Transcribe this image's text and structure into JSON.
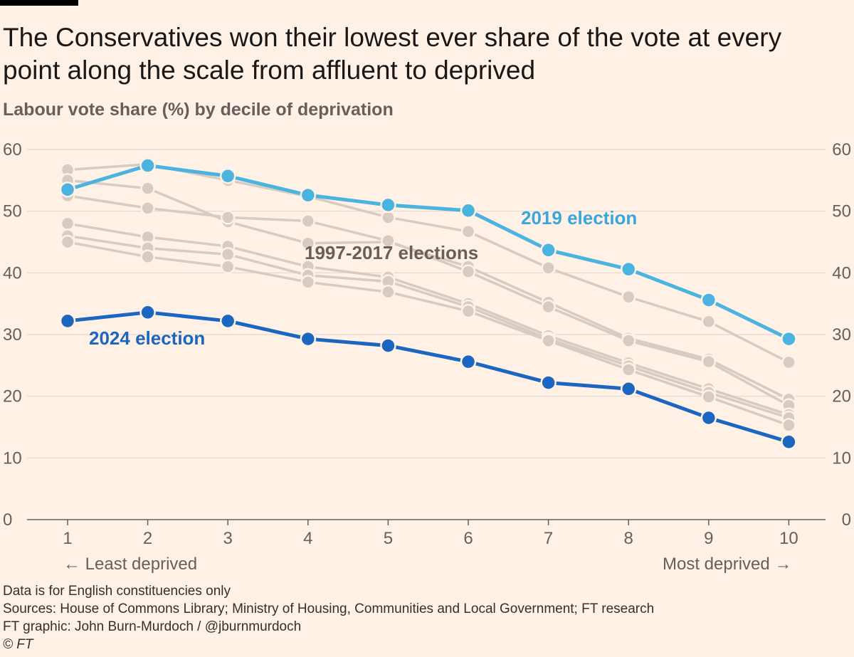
{
  "title": "The Conservatives won their lowest ever share of the vote at every point along the scale from affluent to deprived",
  "subtitle": "Labour vote share (%) by decile of deprivation",
  "chart_data": {
    "type": "line",
    "title": "The Conservatives won their lowest ever share of the vote at every point along the scale from affluent to deprived",
    "ylabel": "Labour vote share (%)",
    "xlabel": "Decile of deprivation",
    "x": [
      1,
      2,
      3,
      4,
      5,
      6,
      7,
      8,
      9,
      10
    ],
    "x_tick_labels": [
      "1",
      "2",
      "3",
      "4",
      "5",
      "6",
      "7",
      "8",
      "9",
      "10"
    ],
    "y_ticks": [
      0,
      10,
      20,
      30,
      40,
      50,
      60
    ],
    "y_tick_labels": [
      "0",
      "10",
      "20",
      "30",
      "40",
      "50",
      "60"
    ],
    "ylim": [
      0,
      60
    ],
    "x_end_labels": {
      "left": "← Least deprived",
      "right": "Most deprived →"
    },
    "grid": true,
    "series": [
      {
        "name": "1997-2017 elections",
        "group": "historic",
        "values": [
          56.7,
          57.6,
          55.0,
          52.4,
          49.0,
          46.7,
          40.8,
          36.1,
          32.1,
          25.5
        ]
      },
      {
        "name": "1997-2017 elections",
        "group": "historic",
        "values": [
          55.0,
          53.7,
          48.3,
          44.8,
          45.0,
          41.0,
          35.2,
          29.4,
          26.0,
          19.5
        ]
      },
      {
        "name": "1997-2017 elections",
        "group": "historic",
        "values": [
          52.5,
          50.5,
          49.0,
          48.4,
          45.2,
          40.2,
          34.5,
          29.0,
          25.6,
          18.5
        ]
      },
      {
        "name": "1997-2017 elections",
        "group": "historic",
        "values": [
          48.0,
          45.8,
          44.3,
          41.0,
          39.3,
          35.0,
          29.8,
          25.4,
          21.2,
          17.0
        ]
      },
      {
        "name": "1997-2017 elections",
        "group": "historic",
        "values": [
          46.0,
          44.0,
          43.0,
          39.6,
          38.6,
          34.5,
          29.3,
          24.9,
          20.6,
          16.5
        ]
      },
      {
        "name": "1997-2017 elections",
        "group": "historic",
        "values": [
          45.0,
          42.6,
          41.0,
          38.5,
          36.9,
          33.8,
          29.0,
          24.3,
          19.9,
          15.3
        ]
      },
      {
        "name": "2019 election",
        "group": "highlight",
        "color": "#4ab3df",
        "values": [
          53.5,
          57.4,
          55.7,
          52.6,
          51.0,
          50.1,
          43.7,
          40.6,
          35.6,
          29.3
        ]
      },
      {
        "name": "2024 election",
        "group": "highlight",
        "color": "#1b66c0",
        "values": [
          32.2,
          33.6,
          32.2,
          29.3,
          28.2,
          25.6,
          22.2,
          21.2,
          16.5,
          12.6
        ]
      }
    ],
    "annotations": [
      {
        "text": "2019 election",
        "color": "#3aa7db"
      },
      {
        "text": "1997-2017 elections",
        "color": "#66605c"
      },
      {
        "text": "2024 election",
        "color": "#1b66c0"
      }
    ]
  },
  "footer": {
    "note": "Data is for English constituencies only",
    "sources": "Sources: House of Commons Library; Ministry of Housing, Communities and Local Government; FT research",
    "credit": "FT graphic: John Burn-Murdoch / @jburnmurdoch",
    "copyright": "© FT"
  }
}
